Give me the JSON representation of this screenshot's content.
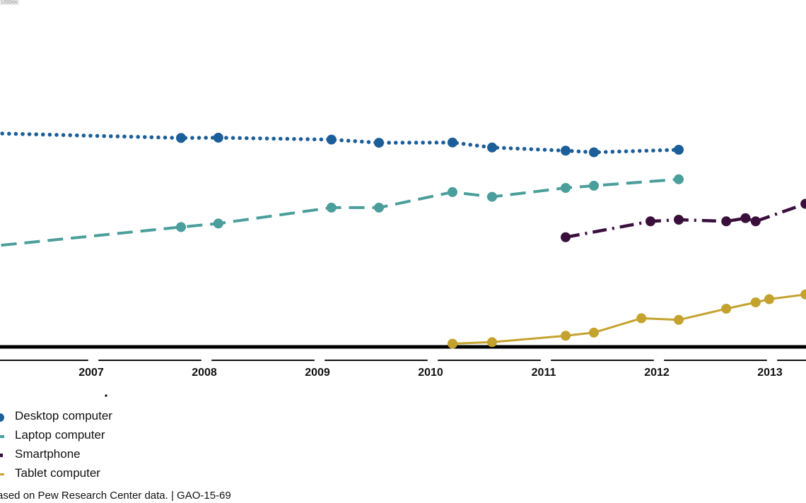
{
  "corner_tag": "USGov",
  "source_text": "ased on Pew Research Center data.  |  GAO-15-69",
  "chart_data": {
    "type": "line",
    "x_axis": {
      "tick_labels": [
        "2007",
        "2008",
        "2009",
        "2010",
        "2011",
        "2012",
        "2013"
      ]
    },
    "grid": false,
    "legend_placement": "bottom-left",
    "series": [
      {
        "name": "Desktop computer",
        "color": "#1b5e99",
        "dash": "dotted",
        "x": [
          2005.8,
          2007.8,
          2008.13,
          2009.13,
          2009.55,
          2010.2,
          2010.55,
          2011.2,
          2011.45,
          2012.2
        ],
        "y": [
          67.5,
          65.7,
          65.8,
          65.2,
          64.2,
          64.3,
          62.7,
          61.7,
          61.2,
          62.0
        ],
        "markers": [
          false,
          true,
          true,
          true,
          true,
          true,
          true,
          true,
          true,
          true
        ]
      },
      {
        "name": "Laptop computer",
        "color": "#4a9e9b",
        "dash": "dashed",
        "x": [
          2005.8,
          2007.8,
          2008.13,
          2009.13,
          2009.55,
          2010.2,
          2010.55,
          2011.2,
          2011.45,
          2012.2
        ],
        "y": [
          30.5,
          37.7,
          38.8,
          43.8,
          43.8,
          48.7,
          47.2,
          50.0,
          50.7,
          52.7
        ],
        "markers": [
          false,
          true,
          true,
          true,
          true,
          true,
          true,
          true,
          true,
          true
        ]
      },
      {
        "name": "Smartphone",
        "color": "#3a0f3c",
        "dash": "dash-dot",
        "x": [
          2011.2,
          2011.95,
          2012.2,
          2012.62,
          2012.79,
          2012.88,
          2013.32,
          2013.5
        ],
        "y": [
          34.5,
          39.5,
          40.0,
          39.5,
          40.5,
          39.5,
          45.0,
          44.5
        ],
        "markers": [
          true,
          true,
          true,
          true,
          true,
          true,
          true,
          false
        ]
      },
      {
        "name": "Tablet computer",
        "color": "#c4a22e",
        "dash": "solid",
        "x": [
          2010.2,
          2010.55,
          2011.2,
          2011.45,
          2011.87,
          2012.2,
          2012.62,
          2012.88,
          2013.0,
          2013.32,
          2013.5
        ],
        "y": [
          1.0,
          1.5,
          3.5,
          4.5,
          9.0,
          8.5,
          12.0,
          14.0,
          15.0,
          16.5,
          17.0
        ],
        "markers": [
          true,
          true,
          true,
          true,
          true,
          true,
          true,
          true,
          true,
          true,
          false
        ]
      }
    ]
  }
}
